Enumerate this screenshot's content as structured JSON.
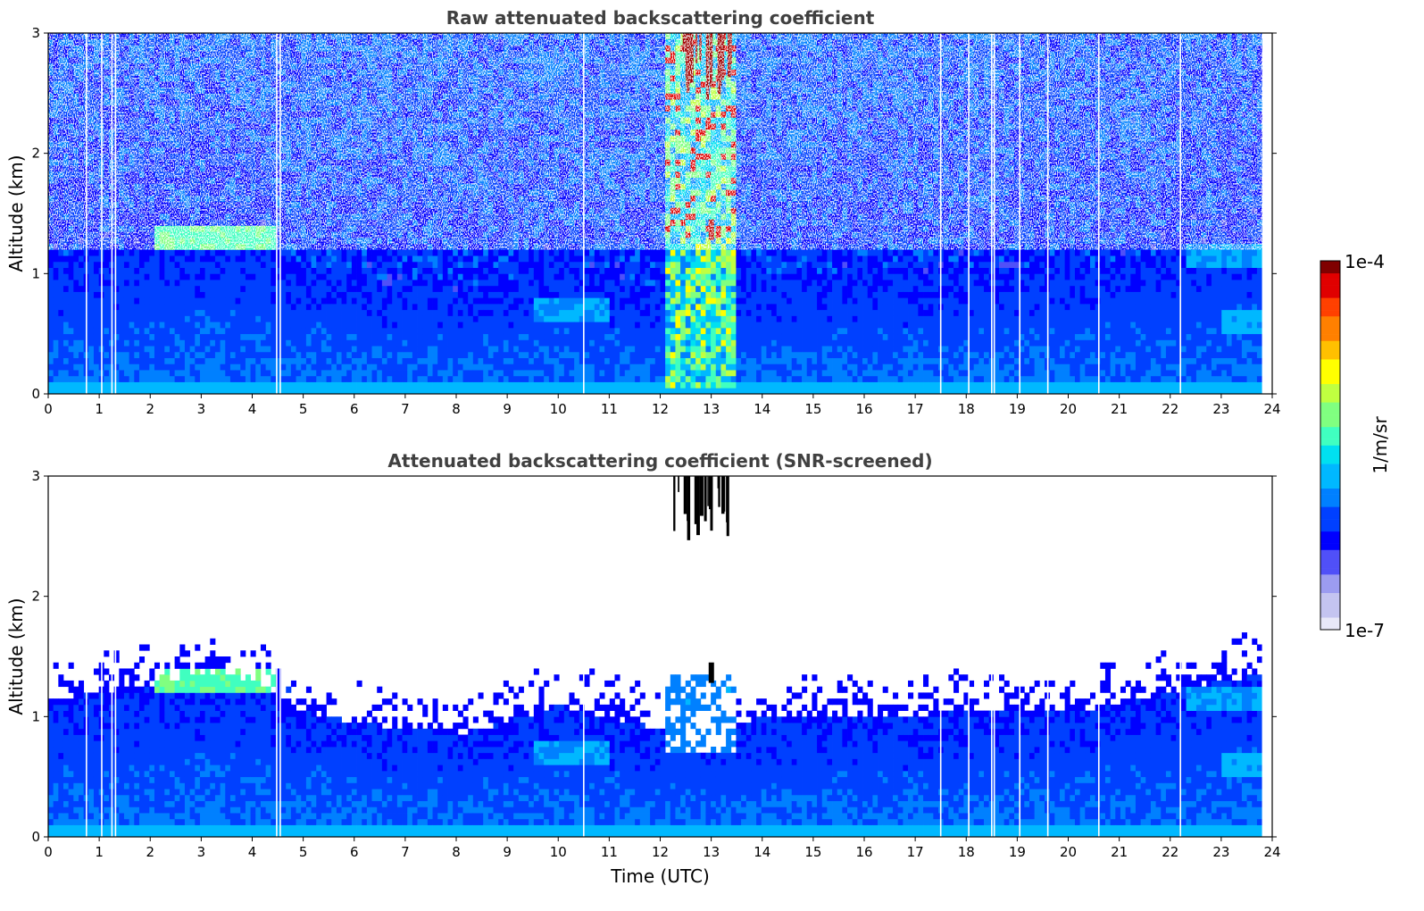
{
  "chart_data": [
    {
      "type": "heatmap",
      "title": "Raw attenuated backscattering coefficient",
      "ylabel": "Altitude (km)",
      "xlabel": "",
      "xlim": [
        0,
        24
      ],
      "ylim": [
        0,
        3
      ],
      "xticks": [
        0,
        1,
        2,
        3,
        4,
        5,
        6,
        7,
        8,
        9,
        10,
        11,
        12,
        13,
        14,
        15,
        16,
        17,
        18,
        19,
        20,
        21,
        22,
        23,
        24
      ],
      "yticks": [
        0,
        1,
        2,
        3
      ],
      "data_end_time": 23.8,
      "screened": false,
      "boundary_layer_top_km": [
        [
          0,
          1.15
        ],
        [
          1,
          1.2
        ],
        [
          2,
          1.25
        ],
        [
          3,
          1.35
        ],
        [
          4,
          1.3
        ],
        [
          5,
          1.05
        ],
        [
          6,
          0.95
        ],
        [
          7,
          0.9
        ],
        [
          8,
          0.85
        ],
        [
          9,
          0.95
        ],
        [
          10,
          1.1
        ],
        [
          11,
          1.0
        ],
        [
          12,
          0.9
        ],
        [
          13,
          0.9
        ],
        [
          14,
          1.0
        ],
        [
          15,
          1.0
        ],
        [
          16,
          1.0
        ],
        [
          17,
          1.0
        ],
        [
          18,
          1.05
        ],
        [
          19,
          1.05
        ],
        [
          20,
          1.05
        ],
        [
          21,
          1.1
        ],
        [
          22,
          1.2
        ],
        [
          23,
          1.3
        ],
        [
          23.8,
          1.35
        ]
      ],
      "aerosol_layers": [
        {
          "t0": 2.1,
          "t1": 4.5,
          "z": 1.3,
          "level": 0.55
        },
        {
          "t0": 22.3,
          "t1": 23.8,
          "z": 1.15,
          "level": 0.38
        },
        {
          "t0": 9.5,
          "t1": 11.0,
          "z": 0.7,
          "level": 0.38
        },
        {
          "t0": 23.0,
          "t1": 23.8,
          "z": 0.6,
          "level": 0.4
        }
      ],
      "cloud": {
        "t0": 12.1,
        "t1": 13.5,
        "z_top": 3.0,
        "z_base_raw": 0.05,
        "z_base_screened": 0.7,
        "dense_base_km": 1.3
      },
      "gap_times": [
        0.75,
        1.05,
        1.25,
        1.32,
        4.48,
        4.55,
        10.5,
        17.5,
        18.05,
        18.5,
        18.55,
        19.05,
        19.6,
        20.6,
        22.2
      ]
    },
    {
      "type": "heatmap",
      "title": "Attenuated backscattering coefficient (SNR-screened)",
      "ylabel": "Altitude (km)",
      "xlabel": "Time (UTC)",
      "xlim": [
        0,
        24
      ],
      "ylim": [
        0,
        3
      ],
      "xticks": [
        0,
        1,
        2,
        3,
        4,
        5,
        6,
        7,
        8,
        9,
        10,
        11,
        12,
        13,
        14,
        15,
        16,
        17,
        18,
        19,
        20,
        21,
        22,
        23,
        24
      ],
      "yticks": [
        0,
        1,
        2,
        3
      ],
      "screened": true
    }
  ],
  "colorbar": {
    "label": "1/m/sr",
    "max_label": "1e-4",
    "min_label": "1e-7",
    "scale": "log",
    "range": [
      1e-07,
      0.0001
    ],
    "colormap": [
      "#e8e8f8",
      "#c4c4f0",
      "#9c9cf0",
      "#5050f8",
      "#0000ff",
      "#0040ff",
      "#0080ff",
      "#00b8ff",
      "#00e0f0",
      "#40ffc0",
      "#80ff80",
      "#c0ff40",
      "#ffff00",
      "#ffc000",
      "#ff8000",
      "#ff4000",
      "#e00000",
      "#800000"
    ]
  }
}
